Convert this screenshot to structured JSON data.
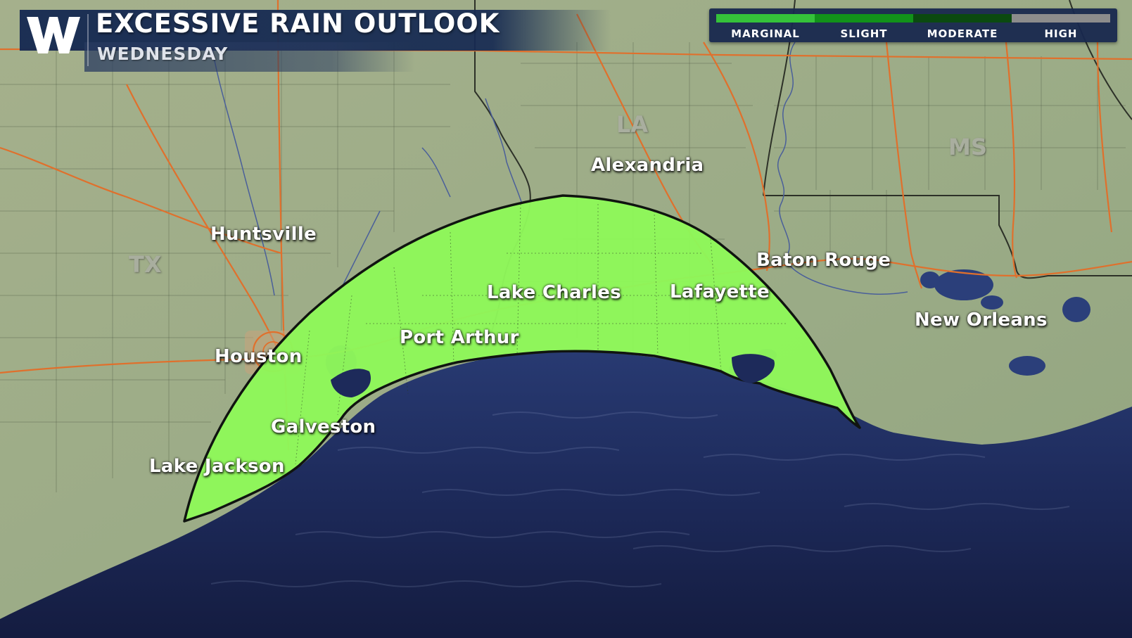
{
  "header": {
    "logo_letter": "W",
    "title": "EXCESSIVE RAIN OUTLOOK",
    "subtitle": "WEDNESDAY"
  },
  "legend": {
    "categories": [
      {
        "label": "MARGINAL",
        "color": "#35c23a"
      },
      {
        "label": "SLIGHT",
        "color": "#12921a"
      },
      {
        "label": "MODERATE",
        "color": "#0b4a10"
      },
      {
        "label": "HIGH",
        "color": "#8c8c8c"
      }
    ]
  },
  "map": {
    "highlighted_risk": "MARGINAL",
    "risk_area_color": "#8ef75a",
    "land_color": "#9aab86",
    "water_color": "#1d2a5a",
    "highway_color": "#e0702c",
    "states": [
      "TX",
      "LA",
      "MS"
    ],
    "cities": [
      "Huntsville",
      "Alexandria",
      "Baton Rouge",
      "Lake Charles",
      "Lafayette",
      "New Orleans",
      "Port Arthur",
      "Houston",
      "Galveston",
      "Lake Jackson"
    ]
  }
}
